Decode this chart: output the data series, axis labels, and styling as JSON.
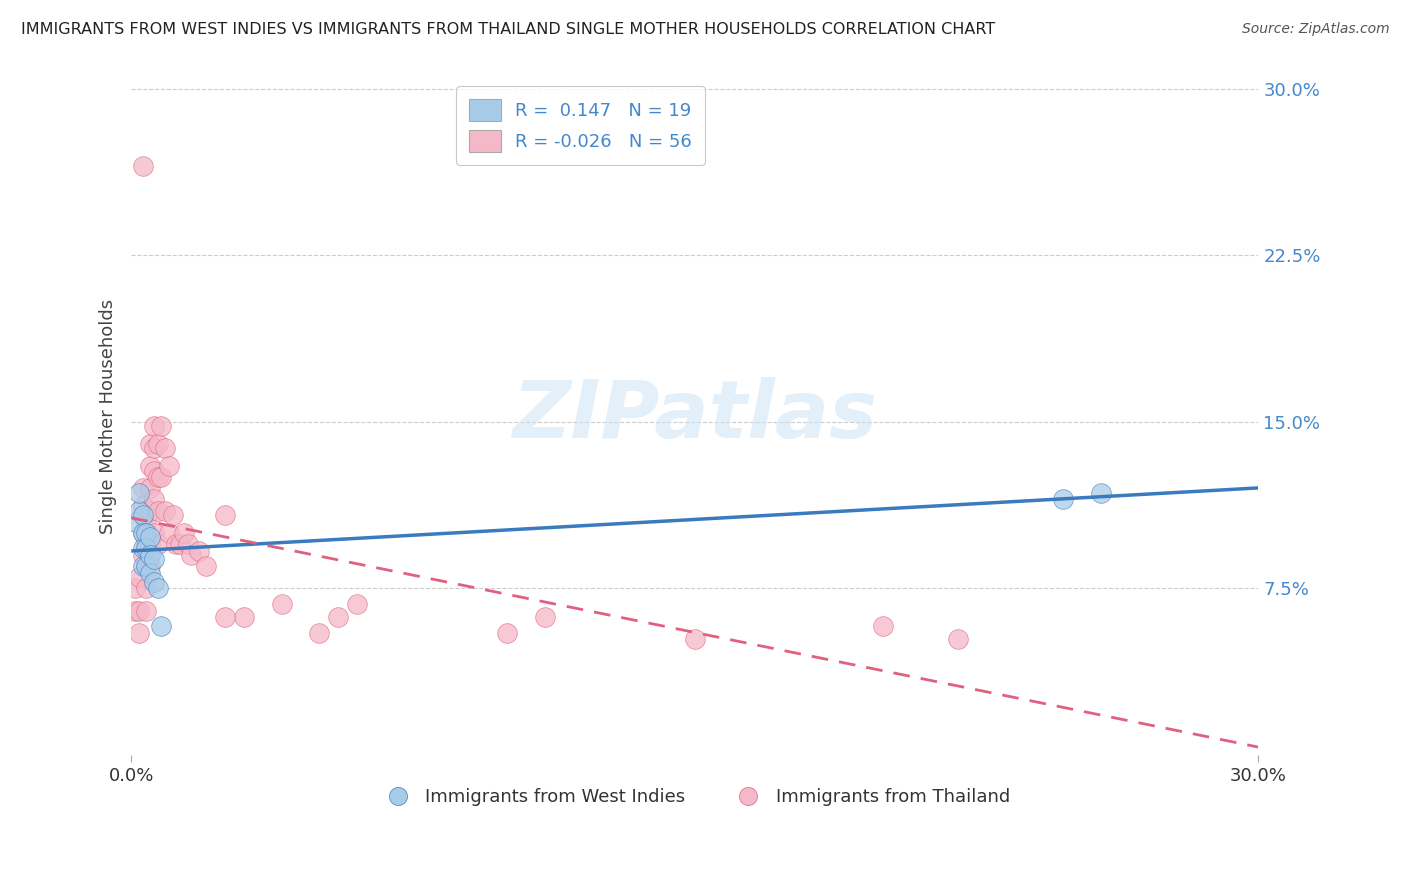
{
  "title": "IMMIGRANTS FROM WEST INDIES VS IMMIGRANTS FROM THAILAND SINGLE MOTHER HOUSEHOLDS CORRELATION CHART",
  "source": "Source: ZipAtlas.com",
  "ylabel": "Single Mother Households",
  "xlim": [
    0.0,
    0.3
  ],
  "ylim": [
    0.0,
    0.3
  ],
  "x_tick_labels": [
    "0.0%",
    "30.0%"
  ],
  "x_ticks": [
    0.0,
    0.3
  ],
  "y_tick_labels": [
    "7.5%",
    "15.0%",
    "22.5%",
    "30.0%"
  ],
  "y_ticks": [
    0.075,
    0.15,
    0.225,
    0.3
  ],
  "r_blue": 0.147,
  "n_blue": 19,
  "r_pink": -0.026,
  "n_pink": 56,
  "legend_label_blue": "Immigrants from West Indies",
  "legend_label_pink": "Immigrants from Thailand",
  "blue_color": "#a8cce8",
  "pink_color": "#f4b8c8",
  "blue_line_color": "#3a7abf",
  "pink_line_color": "#e06080",
  "blue_scatter_x": [
    0.001,
    0.002,
    0.002,
    0.003,
    0.003,
    0.003,
    0.003,
    0.004,
    0.004,
    0.004,
    0.005,
    0.005,
    0.005,
    0.006,
    0.006,
    0.007,
    0.008,
    0.248,
    0.258
  ],
  "blue_scatter_y": [
    0.105,
    0.11,
    0.118,
    0.108,
    0.1,
    0.093,
    0.085,
    0.1,
    0.093,
    0.085,
    0.098,
    0.09,
    0.082,
    0.088,
    0.078,
    0.075,
    0.058,
    0.115,
    0.118
  ],
  "pink_scatter_x": [
    0.001,
    0.001,
    0.002,
    0.002,
    0.002,
    0.003,
    0.003,
    0.003,
    0.003,
    0.003,
    0.004,
    0.004,
    0.004,
    0.004,
    0.004,
    0.005,
    0.005,
    0.005,
    0.005,
    0.005,
    0.005,
    0.006,
    0.006,
    0.006,
    0.006,
    0.006,
    0.007,
    0.007,
    0.007,
    0.007,
    0.008,
    0.008,
    0.009,
    0.009,
    0.01,
    0.01,
    0.011,
    0.012,
    0.013,
    0.014,
    0.015,
    0.016,
    0.018,
    0.02,
    0.025,
    0.03,
    0.04,
    0.05,
    0.055,
    0.06,
    0.1,
    0.11,
    0.15,
    0.2,
    0.22,
    0.025
  ],
  "pink_scatter_y": [
    0.065,
    0.075,
    0.08,
    0.065,
    0.055,
    0.12,
    0.112,
    0.1,
    0.09,
    0.265,
    0.105,
    0.095,
    0.085,
    0.075,
    0.065,
    0.14,
    0.13,
    0.12,
    0.11,
    0.095,
    0.085,
    0.148,
    0.138,
    0.128,
    0.115,
    0.1,
    0.14,
    0.125,
    0.11,
    0.095,
    0.148,
    0.125,
    0.138,
    0.11,
    0.13,
    0.1,
    0.108,
    0.095,
    0.095,
    0.1,
    0.095,
    0.09,
    0.092,
    0.085,
    0.108,
    0.062,
    0.068,
    0.055,
    0.062,
    0.068,
    0.055,
    0.062,
    0.052,
    0.058,
    0.052,
    0.062
  ]
}
